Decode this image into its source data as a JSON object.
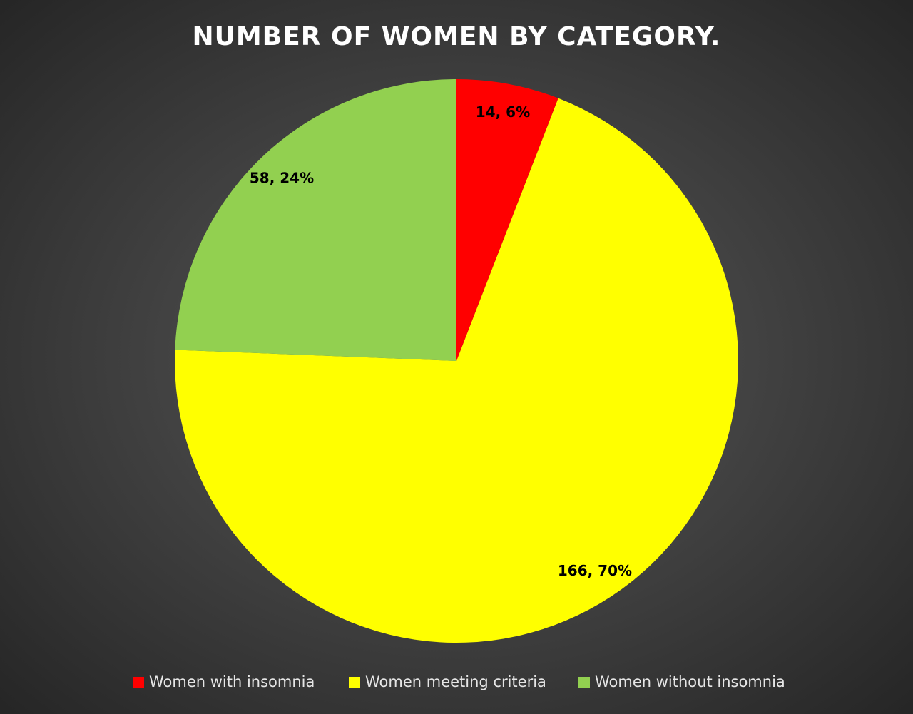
{
  "chart_data": {
    "type": "pie",
    "title": "NUMBER OF WOMEN BY CATEGORY.",
    "categories": [
      "Women with insomnia",
      "Women meeting criteria",
      "Women without insomnia"
    ],
    "values": [
      14,
      166,
      58
    ],
    "value_labels": [
      "14, 6%",
      "166, 70%",
      "58, 24%"
    ],
    "colors": [
      "#ff0000",
      "#ffff00",
      "#92d050"
    ],
    "legend": "bottom"
  }
}
